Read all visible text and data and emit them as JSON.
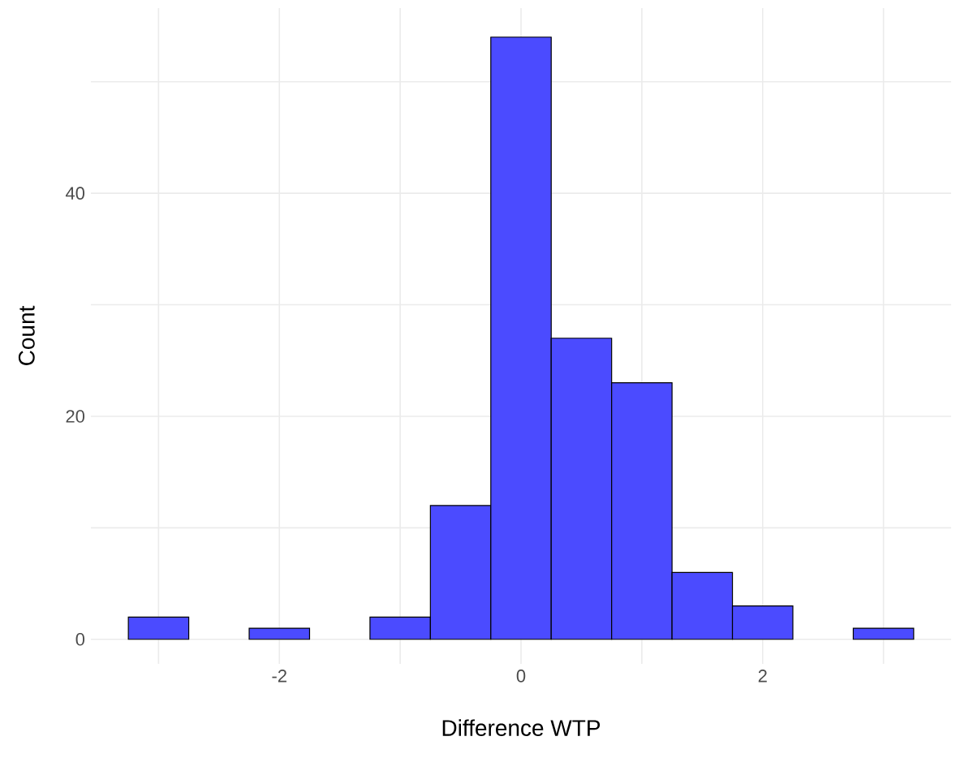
{
  "chart_data": {
    "type": "histogram",
    "xlabel": "Difference WTP",
    "ylabel": "Count",
    "bins": [
      -3.25,
      -2.75,
      -2.25,
      -1.75,
      -1.25,
      -0.75,
      -0.25,
      0.25,
      0.75,
      1.25,
      1.75,
      2.25,
      2.75,
      3.25
    ],
    "values": [
      2,
      0,
      1,
      0,
      2,
      12,
      54,
      27,
      23,
      6,
      3,
      0,
      1
    ],
    "color": "#4b4bff",
    "xlim": [
      -3.56,
      3.56
    ],
    "ylim": [
      -2.2,
      56.6
    ],
    "xticks": [
      {
        "value": -3,
        "label": null
      },
      -2,
      {
        "value": -1,
        "label": null
      },
      0,
      {
        "value": 1,
        "label": null
      },
      2,
      {
        "value": 3,
        "label": null
      }
    ],
    "yticks": [
      0,
      {
        "value": 10,
        "label": null
      },
      20,
      {
        "value": 30,
        "label": null
      },
      40,
      {
        "value": 50,
        "label": null
      }
    ],
    "grid": true
  }
}
